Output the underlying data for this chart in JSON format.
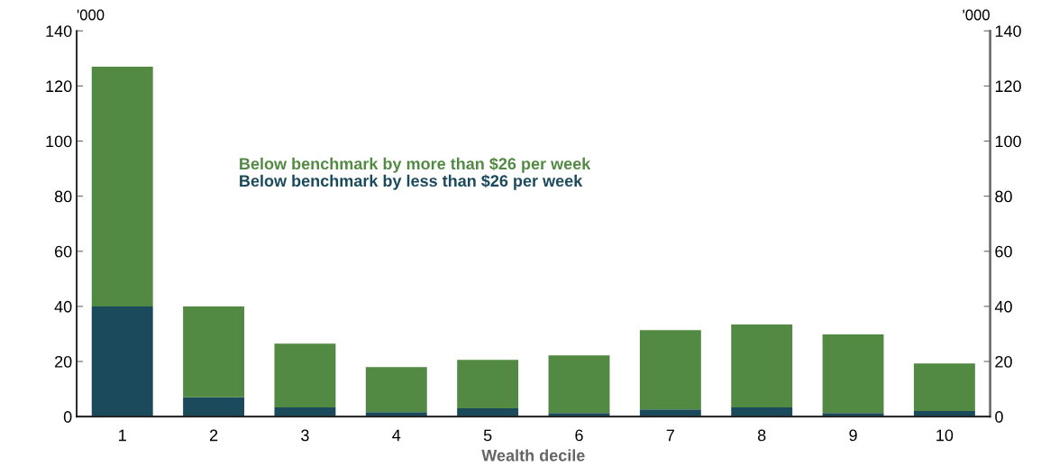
{
  "chart_data": {
    "type": "bar",
    "stacked": true,
    "categories": [
      "1",
      "2",
      "3",
      "4",
      "5",
      "6",
      "7",
      "8",
      "9",
      "10"
    ],
    "series": [
      {
        "name": "Below benchmark by less than $26 per week",
        "color": "#1a4a5c",
        "values": [
          40,
          7,
          3.3,
          1.6,
          3,
          1.3,
          2.6,
          3.3,
          1.3,
          2
        ]
      },
      {
        "name": "Below benchmark by more than $26 per week",
        "color": "#538a43",
        "values": [
          87,
          33,
          23.2,
          16.4,
          17.6,
          20.9,
          28.8,
          30.1,
          28.5,
          17.3
        ]
      }
    ],
    "xlabel": "Wealth decile",
    "ylabel": "'000",
    "y2label": "'000",
    "ylim": [
      0,
      140
    ],
    "yticks": [
      0,
      20,
      40,
      60,
      80,
      100,
      120,
      140
    ],
    "y2lim": [
      0,
      140
    ],
    "y2ticks": [
      0,
      20,
      40,
      60,
      80,
      100,
      120,
      140
    ],
    "grid": false,
    "legend": "center"
  }
}
